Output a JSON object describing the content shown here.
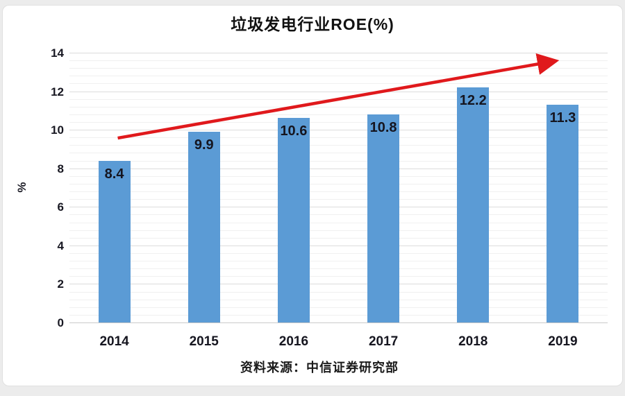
{
  "page": {
    "background_color": "#ececec",
    "card_color": "#ffffff"
  },
  "chart_data": {
    "type": "bar",
    "title": "垃圾发电行业ROE(%)",
    "xlabel": "",
    "ylabel": "%",
    "categories": [
      "2014",
      "2015",
      "2016",
      "2017",
      "2018",
      "2019"
    ],
    "values": [
      8.4,
      9.9,
      10.6,
      10.8,
      12.2,
      11.3
    ],
    "data_labels": [
      "8.4",
      "9.9",
      "10.6",
      "10.8",
      "12.2",
      "11.3"
    ],
    "ylim": [
      0,
      14
    ],
    "y_ticks": [
      0,
      2,
      4,
      6,
      8,
      10,
      12,
      14
    ],
    "minor_unit": 0.4,
    "grid": true,
    "legend": "none",
    "bar_color": "#5b9bd5",
    "value_label_color": "#15151f",
    "trend_arrow": {
      "color": "#e0191c",
      "start_category_index": 0,
      "start_value": 9.57,
      "end_category_index": 5,
      "end_value": 13.55
    }
  },
  "source": {
    "text": "资料来源：中信证券研究部"
  }
}
